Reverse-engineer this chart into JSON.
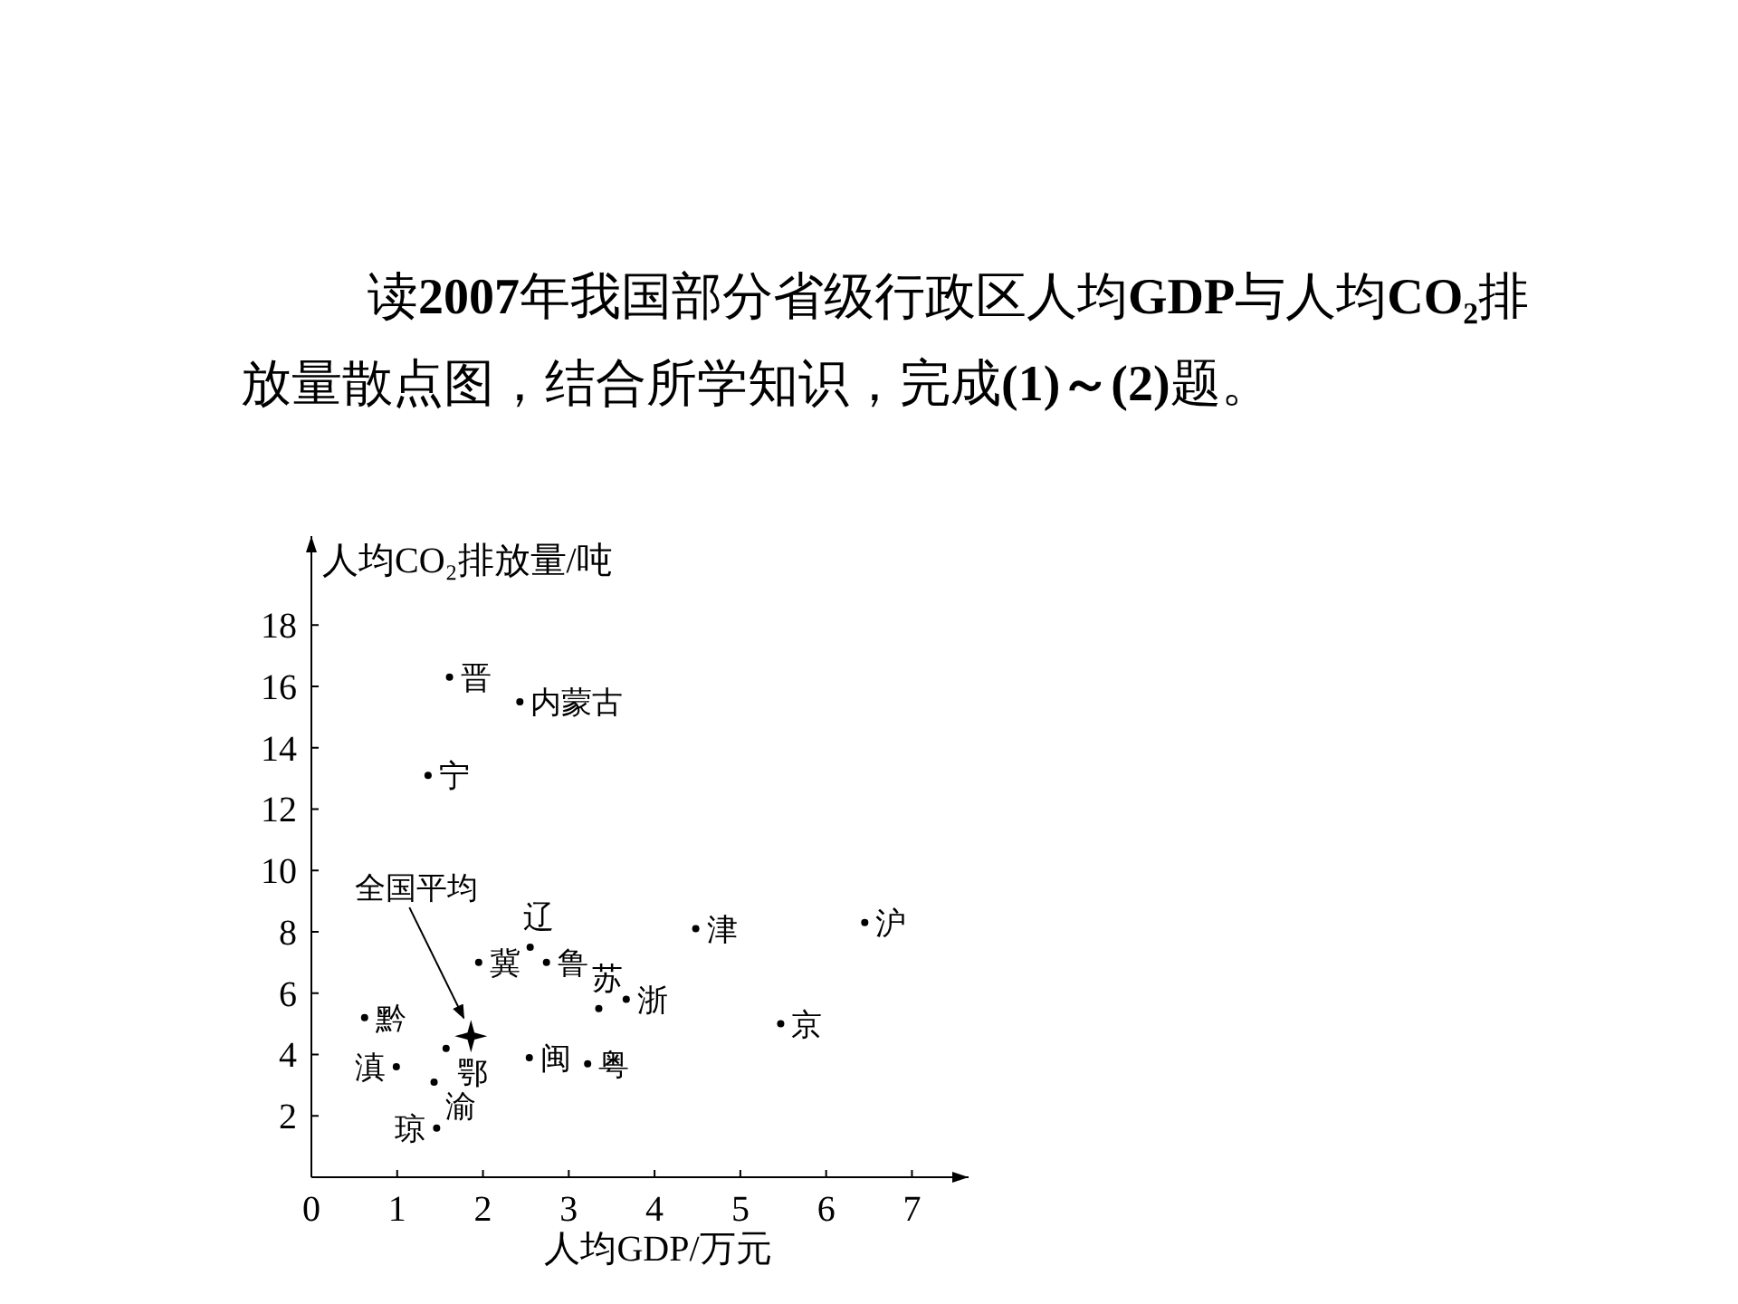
{
  "chart_data": {
    "type": "scatter",
    "title": "读2007年我国部分省级行政区人均GDP与人均CO₂排放量散点图，结合所学知识，完成(1)～(2)题。",
    "xlabel": "人均GDP/万元",
    "ylabel": "人均CO₂排放量/吨",
    "xlim": [
      0,
      7.66
    ],
    "xticks": [
      0,
      1,
      2,
      3,
      4,
      5,
      6,
      7
    ],
    "ylim": [
      0,
      20.9
    ],
    "yticks": [
      2,
      4,
      6,
      8,
      10,
      12,
      14,
      16,
      18
    ],
    "grid": false,
    "series": [
      {
        "color": "#000000",
        "marker": "circle",
        "x": [
          1.61,
          2.43,
          1.36,
          2.55,
          1.95,
          2.74,
          3.35,
          3.67,
          4.48,
          6.45,
          5.47,
          0.62,
          1.57,
          1.43,
          0.99,
          1.46,
          2.54,
          3.22
        ],
        "values": [
          16.3,
          15.5,
          13.1,
          7.5,
          7.0,
          7.0,
          5.5,
          5.8,
          8.1,
          8.3,
          5.0,
          5.2,
          4.2,
          3.1,
          3.6,
          1.6,
          3.9,
          3.7
        ]
      },
      {
        "color": "#000000",
        "marker": "star",
        "x": [
          1.86
        ],
        "values": [
          4.6
        ]
      }
    ],
    "annotations": [
      {
        "text": "晋",
        "x": 1.61,
        "y": 16.3
      },
      {
        "text": "内蒙古",
        "x": 2.43,
        "y": 15.5
      },
      {
        "text": "宁",
        "x": 1.36,
        "y": 13.1
      },
      {
        "text": "辽",
        "x": 2.55,
        "y": 7.5
      },
      {
        "text": "冀",
        "x": 1.95,
        "y": 7.0
      },
      {
        "text": "鲁",
        "x": 2.74,
        "y": 7.0
      },
      {
        "text": "苏",
        "x": 3.35,
        "y": 5.5
      },
      {
        "text": "浙",
        "x": 3.67,
        "y": 5.8
      },
      {
        "text": "津",
        "x": 4.48,
        "y": 8.1
      },
      {
        "text": "沪",
        "x": 6.45,
        "y": 8.3
      },
      {
        "text": "京",
        "x": 5.47,
        "y": 5.0
      },
      {
        "text": "黔",
        "x": 0.62,
        "y": 5.2
      },
      {
        "text": "鄂",
        "x": 1.57,
        "y": 4.2
      },
      {
        "text": "渝",
        "x": 1.43,
        "y": 3.1
      },
      {
        "text": "滇",
        "x": 0.99,
        "y": 3.6
      },
      {
        "text": "琼",
        "x": 1.46,
        "y": 1.6
      },
      {
        "text": "闽",
        "x": 2.54,
        "y": 3.9
      },
      {
        "text": "粤",
        "x": 3.22,
        "y": 3.7
      },
      "全国平均"
    ]
  }
}
